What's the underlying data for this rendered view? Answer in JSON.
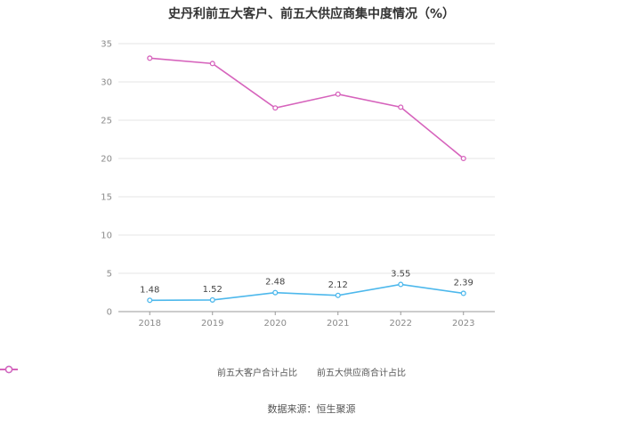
{
  "chart_data": {
    "type": "line",
    "title": "史丹利前五大客户、前五大供应商集中度情况（%）",
    "categories": [
      "2018",
      "2019",
      "2020",
      "2021",
      "2022",
      "2023"
    ],
    "series": [
      {
        "name": "前五大客户合计占比",
        "values": [
          1.48,
          1.52,
          2.48,
          2.12,
          3.55,
          2.39
        ],
        "color": "#4db8ec",
        "labels_shown": true
      },
      {
        "name": "前五大供应商合计占比",
        "values": [
          33.1,
          32.4,
          26.6,
          28.4,
          26.7,
          20.0
        ],
        "color": "#d663bc",
        "labels_shown": false
      }
    ],
    "ylim": [
      0,
      35
    ],
    "yticks": [
      0,
      5,
      10,
      15,
      20,
      25,
      30,
      35
    ],
    "grid": true,
    "legend_position": "bottom"
  },
  "source": "数据来源：恒生聚源"
}
